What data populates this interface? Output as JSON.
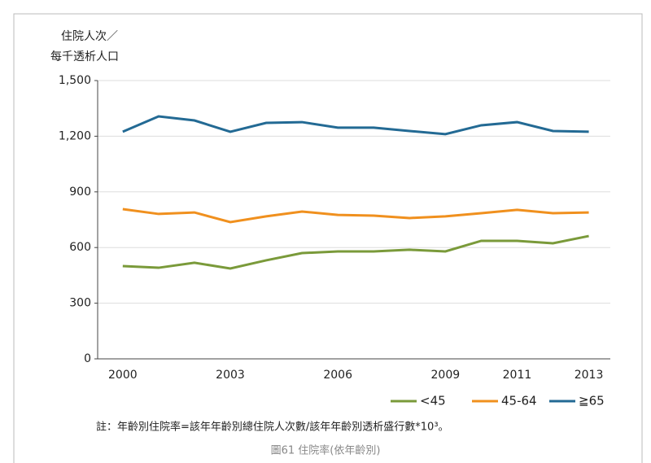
{
  "chart_data": {
    "type": "line",
    "y_label": [
      "住院人次／",
      "每千透析人口"
    ],
    "x": [
      2000,
      2001,
      2002,
      2003,
      2004,
      2005,
      2006,
      2007,
      2008,
      2009,
      2010,
      2011,
      2012,
      2013
    ],
    "series": [
      {
        "name": "<45",
        "color": "#7a9a3a",
        "values": [
          500,
          491,
          518,
          487,
          531,
          570,
          579,
          579,
          588,
          579,
          636,
          636,
          623,
          662
        ]
      },
      {
        "name": "45-64",
        "color": "#f0901e",
        "values": [
          807,
          781,
          789,
          737,
          768,
          794,
          776,
          772,
          759,
          768,
          785,
          803,
          785,
          789
        ]
      },
      {
        "name": "≧65",
        "color": "#236a94",
        "values": [
          1224,
          1307,
          1285,
          1224,
          1272,
          1276,
          1246,
          1246,
          1228,
          1211,
          1259,
          1276,
          1228,
          1224
        ]
      }
    ],
    "xlim": [
      1999.3,
      2013.6
    ],
    "xticks": [
      2000,
      2003,
      2006,
      2009,
      2011,
      2013
    ],
    "ylim": [
      0,
      1500
    ],
    "yticks": [
      0,
      300,
      600,
      900,
      {
        "value": 1200,
        "label": "1,200"
      },
      {
        "value": 1500,
        "label": "1,500"
      }
    ],
    "grid": true,
    "legend": "bottom-right",
    "note": "註：年齡別住院率=該年年齡別總住院人次數/該年年齡別透析盛行數*10³。",
    "caption": "圖61 住院率(依年齡別)"
  }
}
